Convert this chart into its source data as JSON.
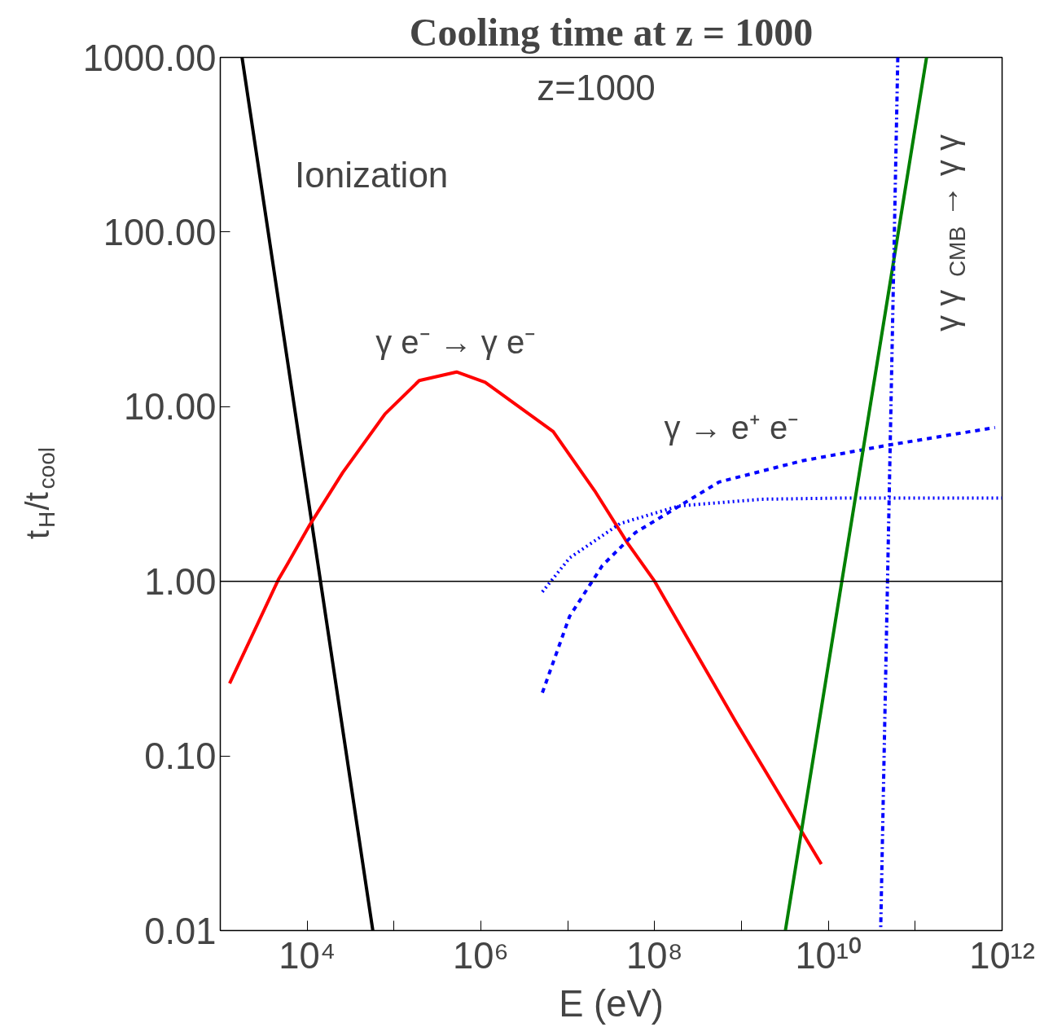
{
  "chart_data": {
    "type": "line",
    "title": "Cooling time at z = 1000",
    "xlabel": "E (eV)",
    "ylabel": "t$_{H}$/t$_{cool}$",
    "log": "xy",
    "grid": false,
    "xlim": [
      1000,
      1000000000000.0
    ],
    "ylim": [
      0.01,
      1000
    ],
    "xticks": [
      {
        "value": 1000,
        "label": null
      },
      {
        "value": 10000,
        "label": "10⁴"
      },
      {
        "value": 100000,
        "label": null
      },
      {
        "value": 1000000,
        "label": "10⁶"
      },
      {
        "value": 10000000,
        "label": null
      },
      {
        "value": 100000000,
        "label": "10⁸"
      },
      {
        "value": 1000000000,
        "label": null
      },
      {
        "value": 10000000000,
        "label": "10¹⁰"
      },
      {
        "value": 100000000000,
        "label": null
      },
      {
        "value": 1000000000000,
        "label": "10¹²"
      }
    ],
    "yticks": [
      {
        "value": 0.01,
        "label": "0.01"
      },
      {
        "value": 0.1,
        "label": "0.10"
      },
      {
        "value": 1,
        "label": "1.00"
      },
      {
        "value": 10,
        "label": "10.00"
      },
      {
        "value": 100,
        "label": "100.00"
      },
      {
        "value": 1000,
        "label": "1000.00"
      }
    ],
    "series": [
      {
        "color": "#000000",
        "line_style": "solid",
        "x": [
          1780,
          57000
        ],
        "values": [
          1000,
          0.01
        ]
      },
      {
        "color": "#ff0000",
        "line_style": "solid",
        "x": [
          1280,
          4700,
          5900,
          10700,
          25700,
          79000,
          195000,
          525000,
          1120000,
          6800000,
          20400000,
          49000000,
          100000000,
          870000000,
          8300000000
        ],
        "values": [
          0.26,
          1.03,
          1.25,
          2.1,
          4.2,
          9.1,
          14.1,
          15.8,
          13.8,
          7.2,
          3.3,
          1.65,
          1.0,
          0.155,
          0.024
        ]
      },
      {
        "color": "#0000ff",
        "line_style": "dashed",
        "x": [
          5100000,
          10500000,
          25000000,
          60000000,
          550000000,
          5000000000,
          47000000000,
          830000000000
        ],
        "values": [
          0.23,
          0.63,
          1.23,
          1.9,
          3.7,
          4.9,
          6.0,
          7.6
        ]
      },
      {
        "color": "#0000ff",
        "line_style": "dotted",
        "x": [
          5100000,
          10500000,
          40000000,
          190000000,
          1700000000,
          16000000000,
          1000000000000
        ],
        "values": [
          0.87,
          1.36,
          2.14,
          2.7,
          2.95,
          3.0,
          3.0
        ]
      },
      {
        "color": "#008000",
        "line_style": "solid",
        "x": [
          3200000000,
          135000000000
        ],
        "values": [
          0.01,
          1000
        ]
      },
      {
        "color": "#0000ff",
        "line_style": "dashdot",
        "x": [
          63000000000,
          40000000000
        ],
        "values": [
          1000,
          0.01
        ]
      }
    ],
    "ref_lines": [
      {
        "axis": "y",
        "value": 1,
        "color": "#000000",
        "line_style": "solid"
      }
    ],
    "annotations": [
      "z=1000",
      "Ionization",
      "γ e⁻ → γ e⁻",
      "γ → e⁺ e⁻",
      "γ γ$_{CMB}$ → γ γ"
    ]
  }
}
